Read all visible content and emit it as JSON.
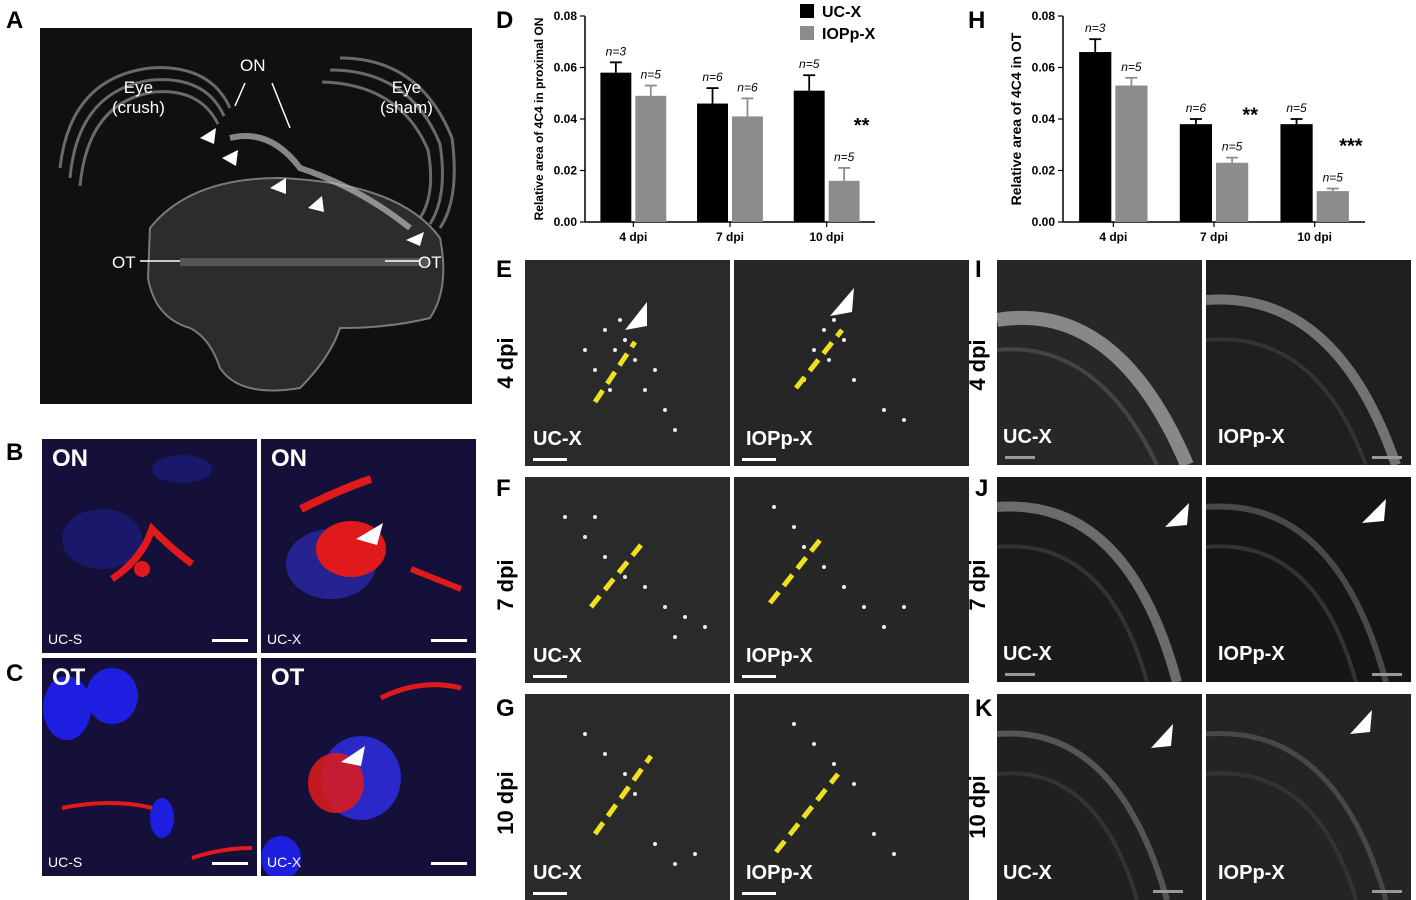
{
  "panel_letters": {
    "A": "A",
    "B": "B",
    "C": "C",
    "D": "D",
    "E": "E",
    "F": "F",
    "G": "G",
    "H": "H",
    "I": "I",
    "J": "J",
    "K": "K"
  },
  "panelA": {
    "eye_left": "Eye",
    "eye_left_sub": "(crush)",
    "eye_right": "Eye",
    "eye_right_sub": "(sham)",
    "on": "ON",
    "ot_left": "OT",
    "ot_right": "OT"
  },
  "panelB": {
    "left_title": "ON",
    "right_title": "ON",
    "left_tag": "UC-S",
    "right_tag": "UC-X"
  },
  "panelC": {
    "left_title": "OT",
    "right_title": "OT",
    "left_tag": "UC-S",
    "right_tag": "UC-X"
  },
  "row_labels": {
    "d4": "4 dpi",
    "d7": "7 dpi",
    "d10": "10 dpi"
  },
  "group_labels": {
    "ucx": "UC-X",
    "iop": "IOPp-X"
  },
  "colors": {
    "ucx": "#000000",
    "iop": "#8c8c8c",
    "dashed": "#f0e020",
    "fl_bg": "#14103a",
    "nucleus": "#1e1ee0",
    "stain": "#e01a1a"
  },
  "chart_data": [
    {
      "id": "D",
      "type": "bar",
      "categories": [
        "4 dpi",
        "7 dpi",
        "10 dpi"
      ],
      "ylabel": "Relative area of 4C4 in proximal ON",
      "ylim": [
        0,
        0.08
      ],
      "yticks": [
        "0.00",
        "0.02",
        "0.04",
        "0.06",
        "0.08"
      ],
      "series": [
        {
          "name": "UC-X",
          "values": [
            0.058,
            0.046,
            0.051
          ],
          "errors": [
            0.004,
            0.006,
            0.006
          ],
          "n": [
            "n=3",
            "n=6",
            "n=5"
          ]
        },
        {
          "name": "IOPp-X",
          "values": [
            0.049,
            0.041,
            0.016
          ],
          "errors": [
            0.004,
            0.007,
            0.005
          ],
          "n": [
            "n=5",
            "n=6",
            "n=5"
          ]
        }
      ],
      "significance": [
        "",
        "",
        "**"
      ],
      "legend": {
        "position": "top-right"
      }
    },
    {
      "id": "H",
      "type": "bar",
      "categories": [
        "4 dpi",
        "7 dpi",
        "10 dpi"
      ],
      "ylabel": "Relative area of 4C4 in OT",
      "ylim": [
        0,
        0.08
      ],
      "yticks": [
        "0.00",
        "0.02",
        "0.04",
        "0.06",
        "0.08"
      ],
      "series": [
        {
          "name": "UC-X",
          "values": [
            0.066,
            0.038,
            0.038
          ],
          "errors": [
            0.005,
            0.002,
            0.002
          ],
          "n": [
            "n=3",
            "n=6",
            "n=5"
          ]
        },
        {
          "name": "IOPp-X",
          "values": [
            0.053,
            0.023,
            0.012
          ],
          "errors": [
            0.003,
            0.002,
            0.001
          ],
          "n": [
            "n=5",
            "n=5",
            "n=5"
          ]
        }
      ],
      "significance": [
        "",
        "**",
        "***"
      ]
    }
  ]
}
